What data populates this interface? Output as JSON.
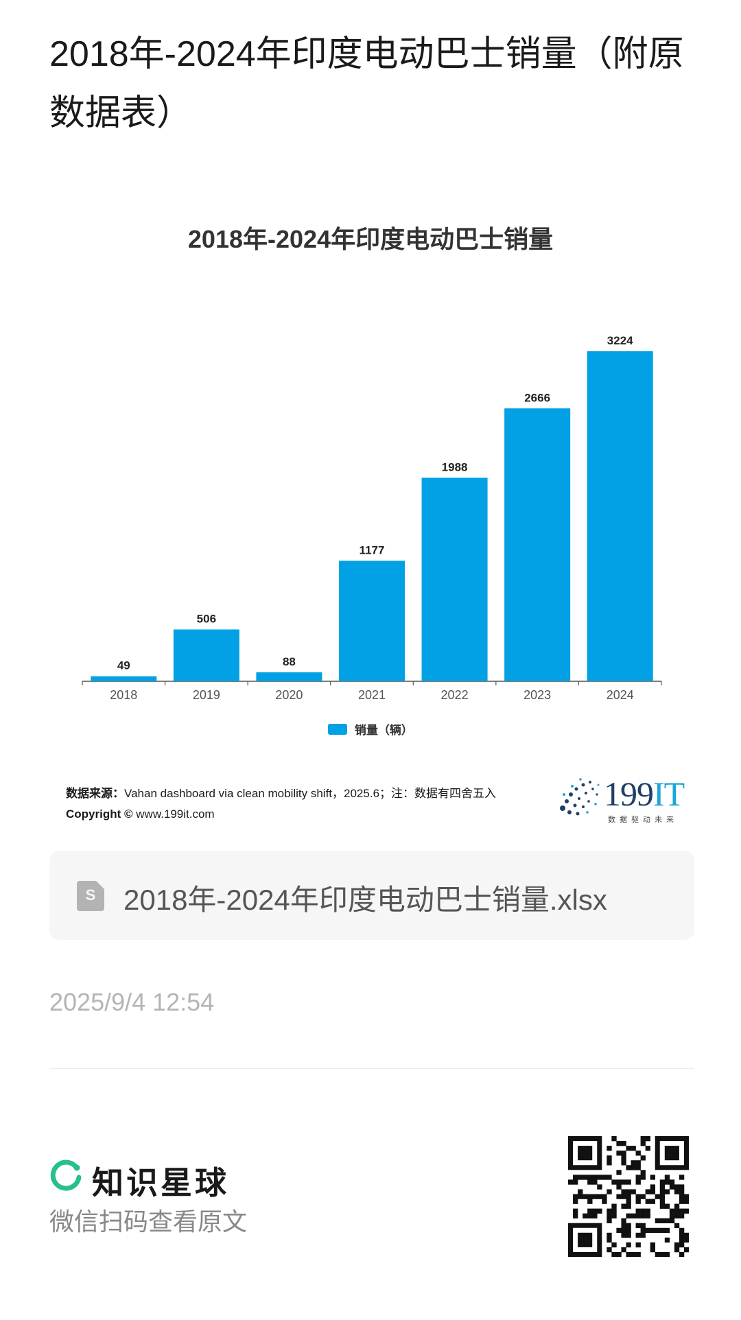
{
  "page": {
    "title": "2018年-2024年印度电动巴士销量（附原数据表）"
  },
  "chart_data": {
    "type": "bar",
    "title": "2018年-2024年印度电动巴士销量",
    "categories": [
      "2018",
      "2019",
      "2020",
      "2021",
      "2022",
      "2023",
      "2024"
    ],
    "series": [
      {
        "name": "销量（辆）",
        "values": [
          49,
          506,
          88,
          1177,
          1988,
          2666,
          3224
        ],
        "color": "#02a0e4"
      }
    ],
    "value_labels": [
      "49",
      "506",
      "88",
      "1177",
      "1988",
      "2666",
      "3224"
    ],
    "xlabel": "",
    "ylabel": "",
    "ylim": [
      0,
      3224
    ],
    "grid": false,
    "legend": "bottom-center"
  },
  "source": {
    "label": "数据来源：",
    "text": "Vahan dashboard via clean mobility shift，2025.6；注：数据有四舍五入",
    "copyright_label": "Copyright ©",
    "copyright_text": "www.199it.com"
  },
  "logo": {
    "name": "199",
    "name_suffix": "IT",
    "slogan": "数据驱动未来"
  },
  "file": {
    "icon": "spreadsheet-file-icon",
    "icon_letter": "S",
    "name": "2018年-2024年印度电动巴士销量.xlsx"
  },
  "meta": {
    "timestamp": "2025/9/4 12:54"
  },
  "footer": {
    "brand_icon": "planet-ring-icon",
    "brand_name": "知识星球",
    "scan_hint": "微信扫码查看原文",
    "qr_icon": "qr-code-icon"
  },
  "colors": {
    "bar": "#02a0e4",
    "brand_green": "#27c08a"
  }
}
